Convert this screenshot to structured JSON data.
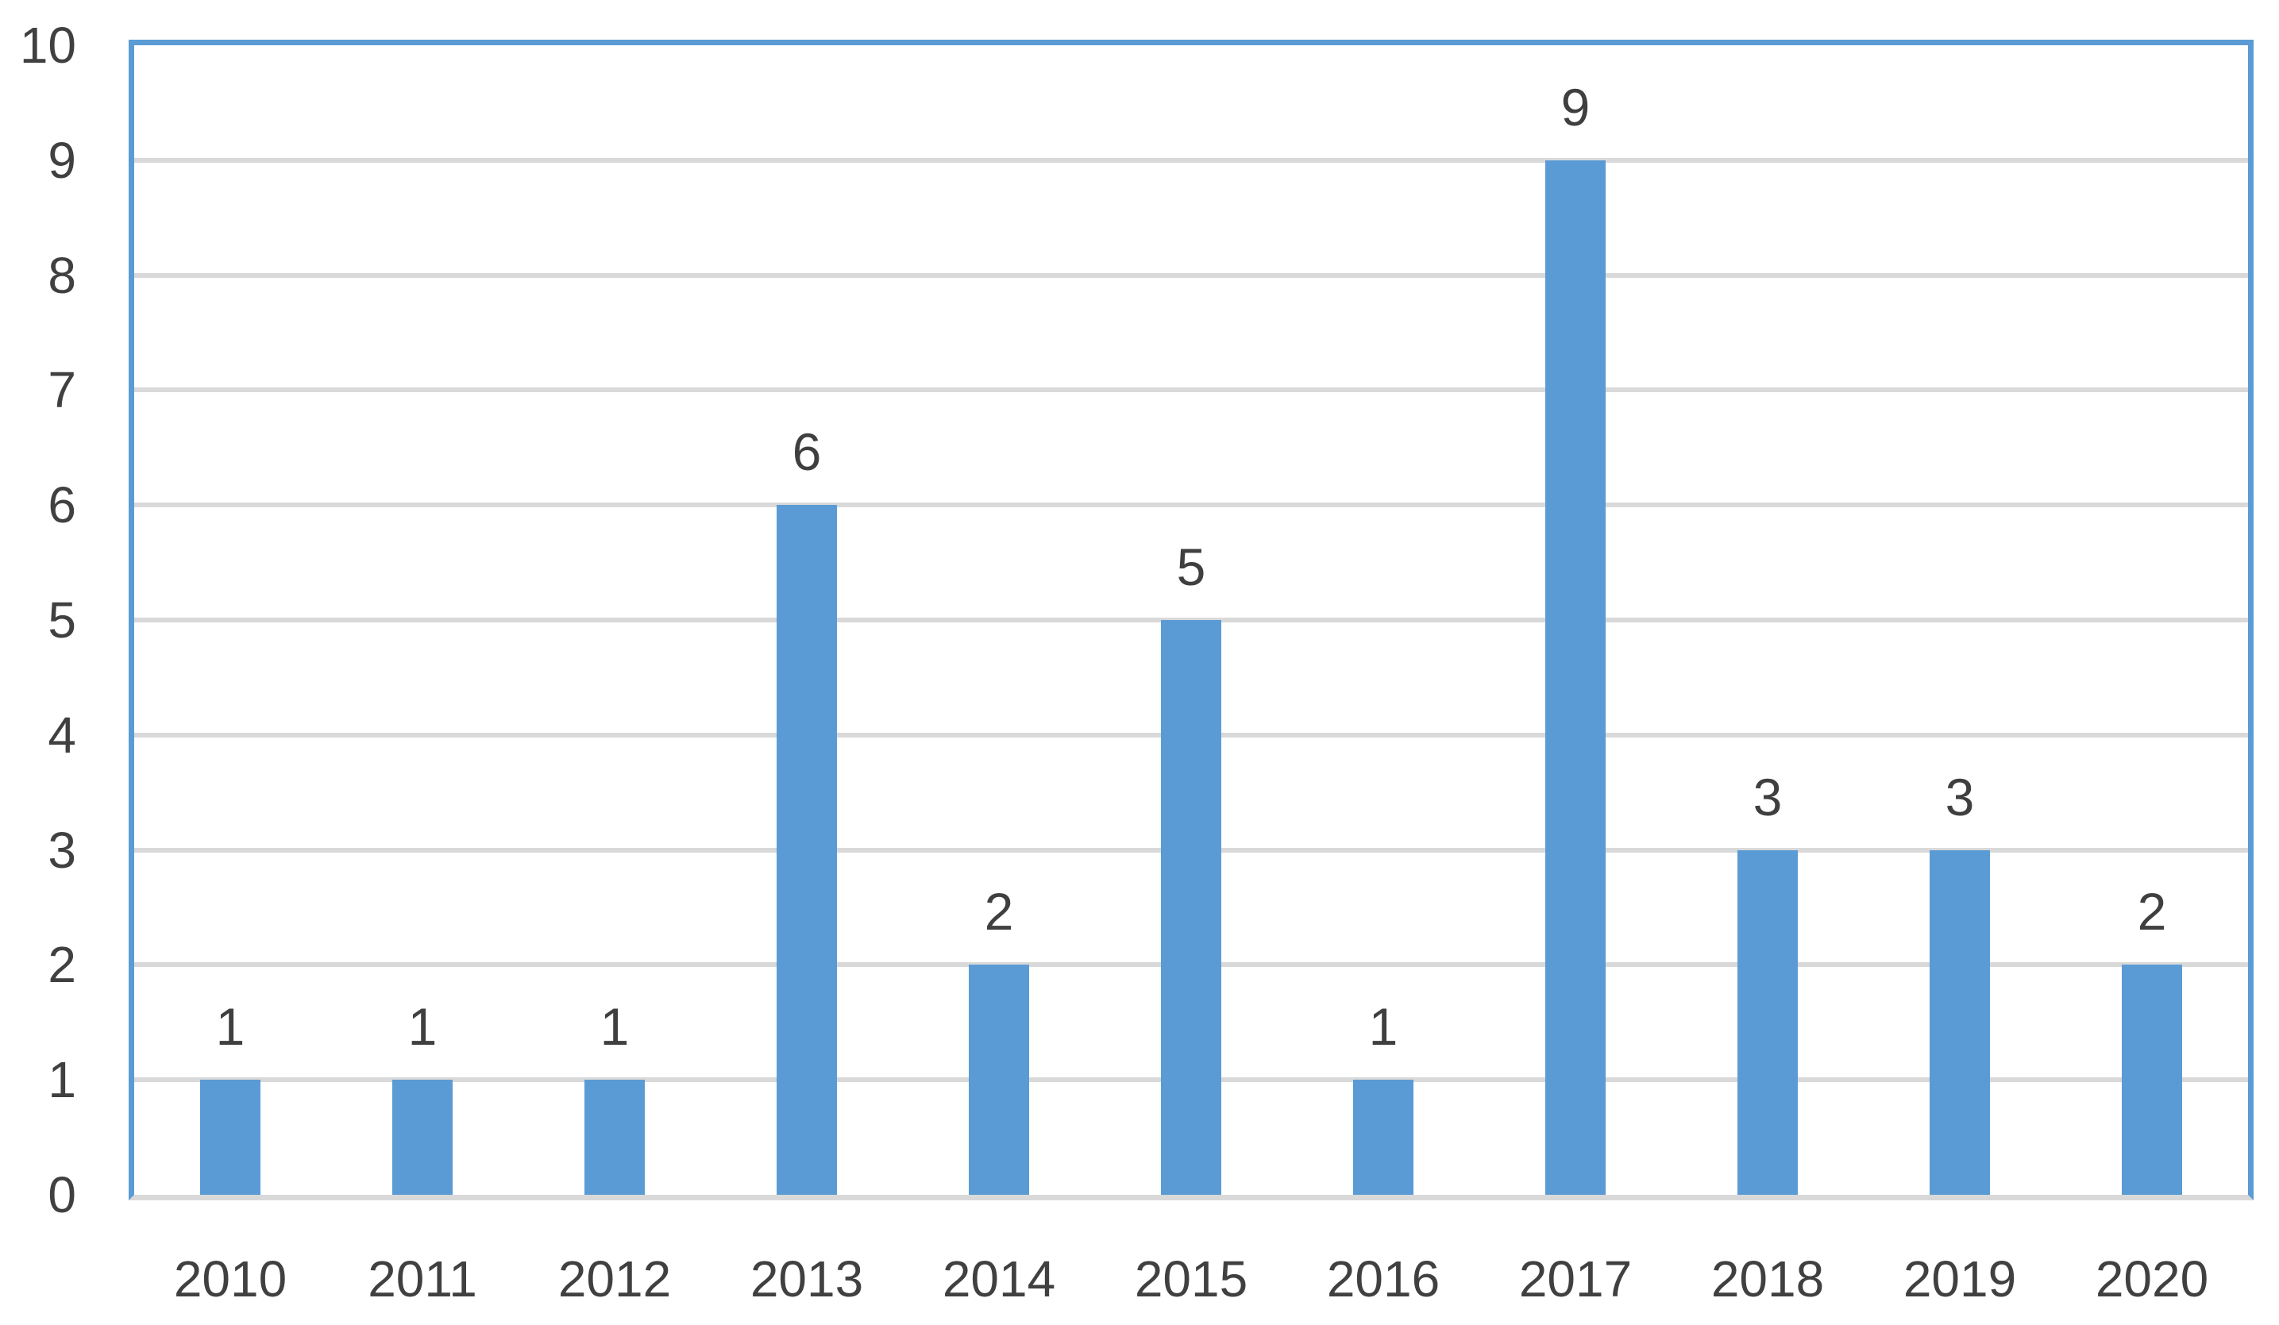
{
  "chart_data": {
    "type": "bar",
    "title": "",
    "xlabel": "",
    "ylabel": "",
    "categories": [
      "2010",
      "2011",
      "2012",
      "2013",
      "2014",
      "2015",
      "2016",
      "2017",
      "2018",
      "2019",
      "2020"
    ],
    "values": [
      1,
      1,
      1,
      6,
      2,
      5,
      1,
      9,
      3,
      3,
      2
    ],
    "ylim": [
      0,
      10
    ],
    "ytick_interval": 1,
    "yticks": [
      "0",
      "1",
      "2",
      "3",
      "4",
      "5",
      "6",
      "7",
      "8",
      "9",
      "10"
    ],
    "grid": true,
    "gridlines": "horizontal",
    "legend": false,
    "data_labels": true,
    "colors": {
      "bar": "#5B9BD5",
      "plot_border": "#5B9BD5",
      "gridline": "#D9D9D9",
      "axis_line": "#D9D9D9",
      "tick_label_text": "#404040",
      "data_label_text": "#3F3F3F"
    }
  }
}
